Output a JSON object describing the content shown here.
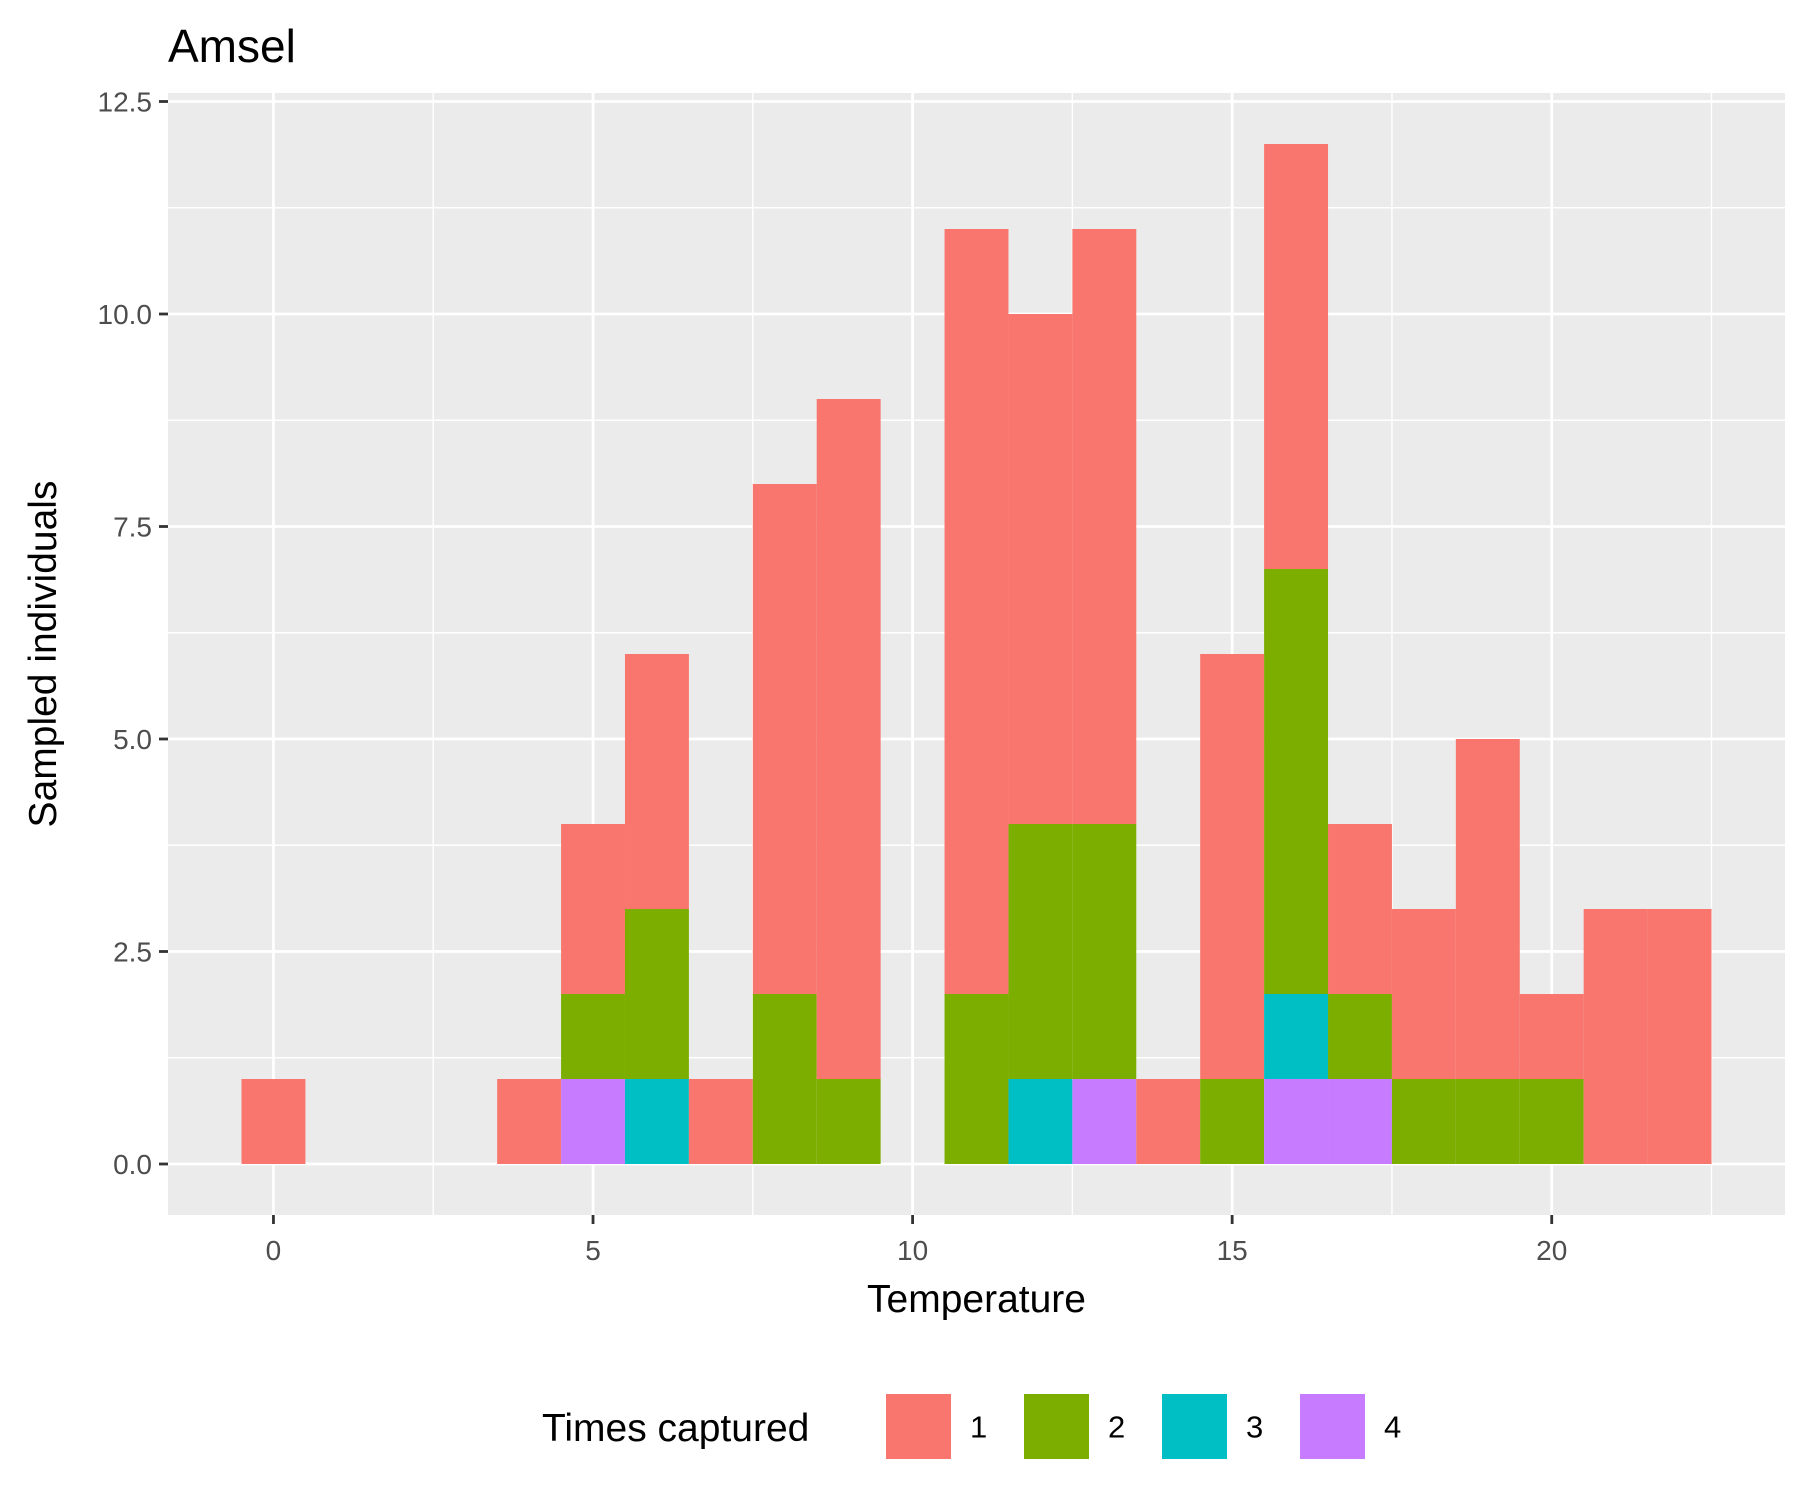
{
  "chart_data": {
    "type": "bar",
    "stacked": true,
    "title": "Amsel",
    "xlabel": "Temperature",
    "ylabel": "Sampled individuals",
    "x": [
      0,
      1,
      2,
      3,
      4,
      5,
      6,
      7,
      8,
      9,
      10,
      11,
      12,
      13,
      14,
      15,
      16,
      17,
      18,
      19,
      20,
      21,
      22
    ],
    "bin_width": 1,
    "xlim": [
      -1.65,
      23.65
    ],
    "ylim": [
      -0.6,
      12.6
    ],
    "x_ticks": [
      0,
      5,
      10,
      15,
      20
    ],
    "x_tick_labels": [
      "0",
      "5",
      "10",
      "15",
      "20"
    ],
    "y_ticks": [
      0,
      2.5,
      5,
      7.5,
      10,
      12.5
    ],
    "y_tick_labels": [
      "0.0",
      "2.5",
      "5.0",
      "7.5",
      "10.0",
      "12.5"
    ],
    "grid": true,
    "legend": {
      "title": "Times captured",
      "position": "bottom"
    },
    "series": [
      {
        "name": "1",
        "color": "#F8766D",
        "values": [
          1,
          0,
          0,
          0,
          1,
          2,
          3,
          1,
          6,
          8,
          0,
          9,
          6,
          7,
          1,
          5,
          5,
          2,
          2,
          4,
          1,
          3,
          3
        ]
      },
      {
        "name": "2",
        "color": "#7CAE00",
        "values": [
          0,
          0,
          0,
          0,
          0,
          1,
          2,
          0,
          2,
          1,
          0,
          2,
          3,
          3,
          0,
          1,
          5,
          1,
          1,
          1,
          1,
          0,
          0
        ]
      },
      {
        "name": "3",
        "color": "#00BFC4",
        "values": [
          0,
          0,
          0,
          0,
          0,
          0,
          1,
          0,
          0,
          0,
          0,
          0,
          1,
          0,
          0,
          0,
          1,
          0,
          0,
          0,
          0,
          0,
          0
        ]
      },
      {
        "name": "4",
        "color": "#C77CFF",
        "values": [
          0,
          0,
          0,
          0,
          0,
          1,
          0,
          0,
          0,
          0,
          0,
          0,
          0,
          1,
          0,
          0,
          1,
          1,
          0,
          0,
          0,
          0,
          0
        ]
      }
    ]
  }
}
